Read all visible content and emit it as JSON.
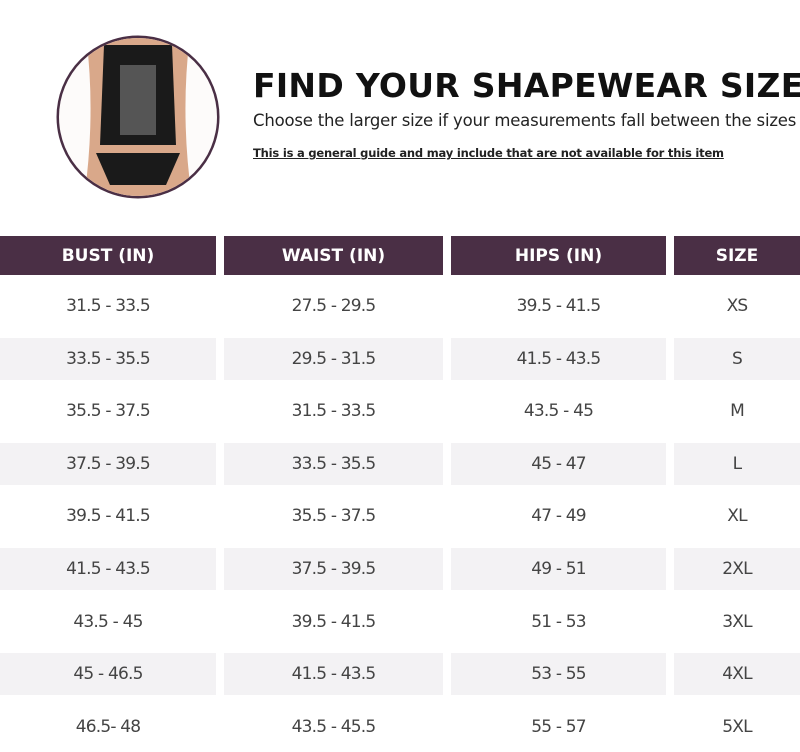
{
  "header": {
    "title": "FIND YOUR SHAPEWEAR SIZE",
    "subtitle": "Choose the larger size if your measurements fall between the sizes",
    "note": "This is a general guide and may include that are not available for this item"
  },
  "table": {
    "columns": [
      "BUST (IN)",
      "WAIST (IN)",
      "HIPS (IN)",
      "SIZE"
    ],
    "header_color": "#4a2f45",
    "rows": [
      [
        "31.5 - 33.5",
        "27.5 - 29.5",
        "39.5 - 41.5",
        "XS"
      ],
      [
        "33.5 - 35.5",
        "29.5 - 31.5",
        "41.5 - 43.5",
        "S"
      ],
      [
        "35.5 - 37.5",
        "31.5 - 33.5",
        "43.5 - 45",
        "M"
      ],
      [
        "37.5 - 39.5",
        "33.5 - 35.5",
        "45 - 47",
        "L"
      ],
      [
        "39.5 - 41.5",
        "35.5 - 37.5",
        "47 - 49",
        "XL"
      ],
      [
        "41.5 - 43.5",
        "37.5 - 39.5",
        "49 - 51",
        "2XL"
      ],
      [
        "43.5 - 45",
        "39.5 - 41.5",
        "51 - 53",
        "3XL"
      ],
      [
        "45 - 46.5",
        "41.5 - 43.5",
        "53 - 55",
        "4XL"
      ],
      [
        "46.5- 48",
        "43.5 - 45.5",
        "55 - 57",
        "5XL"
      ]
    ]
  }
}
